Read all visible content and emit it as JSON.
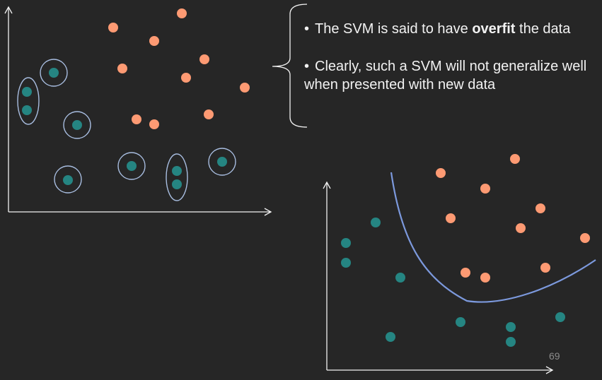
{
  "colors": {
    "background": "#262626",
    "positive_class": "#fd9a73",
    "negative_class": "#258582",
    "decision_boundary": "#7c99dd",
    "overfit_outline": "#a8bde0",
    "axis": "#f2f2f2"
  },
  "bullets": [
    {
      "marker": "•",
      "before": "The SVM is said to have ",
      "bold": "overfit",
      "after": " the data"
    },
    {
      "marker": "•",
      "before": "Clearly, such a SVM will not generalize well when presented with new data",
      "bold": "",
      "after": ""
    }
  ],
  "page_number": "69",
  "icons": [
    "curly-brace-icon",
    "axis-arrow-icon"
  ]
}
